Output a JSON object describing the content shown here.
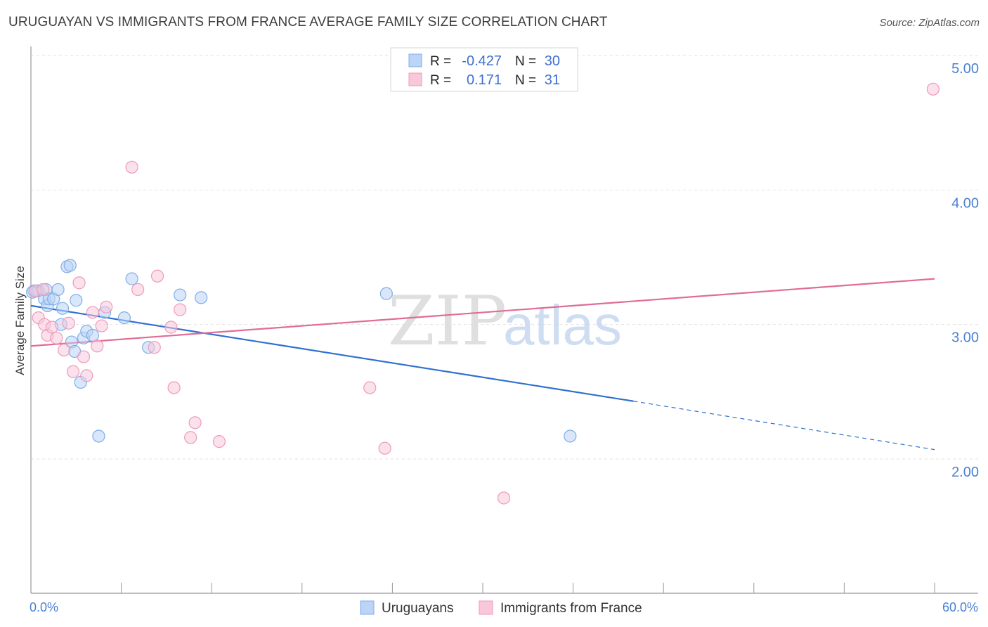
{
  "title": "URUGUAYAN VS IMMIGRANTS FROM FRANCE AVERAGE FAMILY SIZE CORRELATION CHART",
  "source": "Source: ZipAtlas.com",
  "watermark": {
    "part1": "ZIP",
    "part2": "atlas"
  },
  "stats": {
    "rows": [
      {
        "r_label": "R =",
        "r_value": "-0.427",
        "n_label": "N =",
        "n_value": "30"
      },
      {
        "r_label": "R =",
        "r_value": "0.171",
        "n_label": "N =",
        "n_value": "31"
      }
    ]
  },
  "chart_data": {
    "type": "scatter",
    "title": "URUGUAYAN VS IMMIGRANTS FROM FRANCE AVERAGE FAMILY SIZE CORRELATION CHART",
    "xlabel": "",
    "ylabel": "Average Family Size",
    "xlim": [
      0,
      60
    ],
    "ylim": [
      1.05,
      5.1
    ],
    "x_tick_labels": [
      "0.0%",
      "60.0%"
    ],
    "y_ticks": [
      2.0,
      3.0,
      4.0,
      5.0
    ],
    "y_tick_labels": [
      "2.00",
      "3.00",
      "4.00",
      "5.00"
    ],
    "legend_position": "bottom",
    "series": [
      {
        "name": "Uruguayans",
        "color": "#7eaee8",
        "fill": "#bcd4f5",
        "line_color": "#2e6fd0",
        "r": -0.427,
        "n": 30,
        "trend": {
          "x_start": 0.0,
          "y_start": 3.14,
          "x_solid_end": 40.0,
          "y_solid_end": 2.43,
          "x_end": 60.0,
          "y_end": 2.07
        },
        "points": [
          [
            0.2,
            3.25
          ],
          [
            0.4,
            3.25
          ],
          [
            0.5,
            3.25
          ],
          [
            0.9,
            3.19
          ],
          [
            1.0,
            3.26
          ],
          [
            1.1,
            3.14
          ],
          [
            1.2,
            3.19
          ],
          [
            1.5,
            3.19
          ],
          [
            1.8,
            3.26
          ],
          [
            2.0,
            3.0
          ],
          [
            2.1,
            3.12
          ],
          [
            2.4,
            3.43
          ],
          [
            2.6,
            3.44
          ],
          [
            2.7,
            2.87
          ],
          [
            2.9,
            2.8
          ],
          [
            3.0,
            3.18
          ],
          [
            3.3,
            2.57
          ],
          [
            3.5,
            2.9
          ],
          [
            3.7,
            2.95
          ],
          [
            4.1,
            2.92
          ],
          [
            4.5,
            2.17
          ],
          [
            4.9,
            3.09
          ],
          [
            6.2,
            3.05
          ],
          [
            6.7,
            3.34
          ],
          [
            7.8,
            2.83
          ],
          [
            9.9,
            3.22
          ],
          [
            11.3,
            3.2
          ],
          [
            23.6,
            3.23
          ],
          [
            35.8,
            2.17
          ],
          [
            0.1,
            3.24
          ]
        ]
      },
      {
        "name": "Immigrants from France",
        "color": "#ee9ab8",
        "fill": "#f8c8da",
        "line_color": "#e06c98",
        "r": 0.171,
        "n": 31,
        "trend": {
          "x_start": 0.0,
          "y_start": 2.84,
          "x_end": 60.0,
          "y_end": 3.34
        },
        "points": [
          [
            0.3,
            3.25
          ],
          [
            0.5,
            3.05
          ],
          [
            0.8,
            3.26
          ],
          [
            0.9,
            3.0
          ],
          [
            1.1,
            2.92
          ],
          [
            1.4,
            2.98
          ],
          [
            1.7,
            2.9
          ],
          [
            2.2,
            2.81
          ],
          [
            2.5,
            3.01
          ],
          [
            2.8,
            2.65
          ],
          [
            3.2,
            3.31
          ],
          [
            3.5,
            2.76
          ],
          [
            3.7,
            2.62
          ],
          [
            4.1,
            3.09
          ],
          [
            4.4,
            2.84
          ],
          [
            4.7,
            2.99
          ],
          [
            5.0,
            3.13
          ],
          [
            6.7,
            4.17
          ],
          [
            7.1,
            3.26
          ],
          [
            8.2,
            2.83
          ],
          [
            8.4,
            3.36
          ],
          [
            9.3,
            2.98
          ],
          [
            9.5,
            2.53
          ],
          [
            9.9,
            3.11
          ],
          [
            10.6,
            2.16
          ],
          [
            10.9,
            2.27
          ],
          [
            12.5,
            2.13
          ],
          [
            22.5,
            2.53
          ],
          [
            23.5,
            2.08
          ],
          [
            31.4,
            1.71
          ],
          [
            59.9,
            4.75
          ]
        ]
      }
    ]
  }
}
